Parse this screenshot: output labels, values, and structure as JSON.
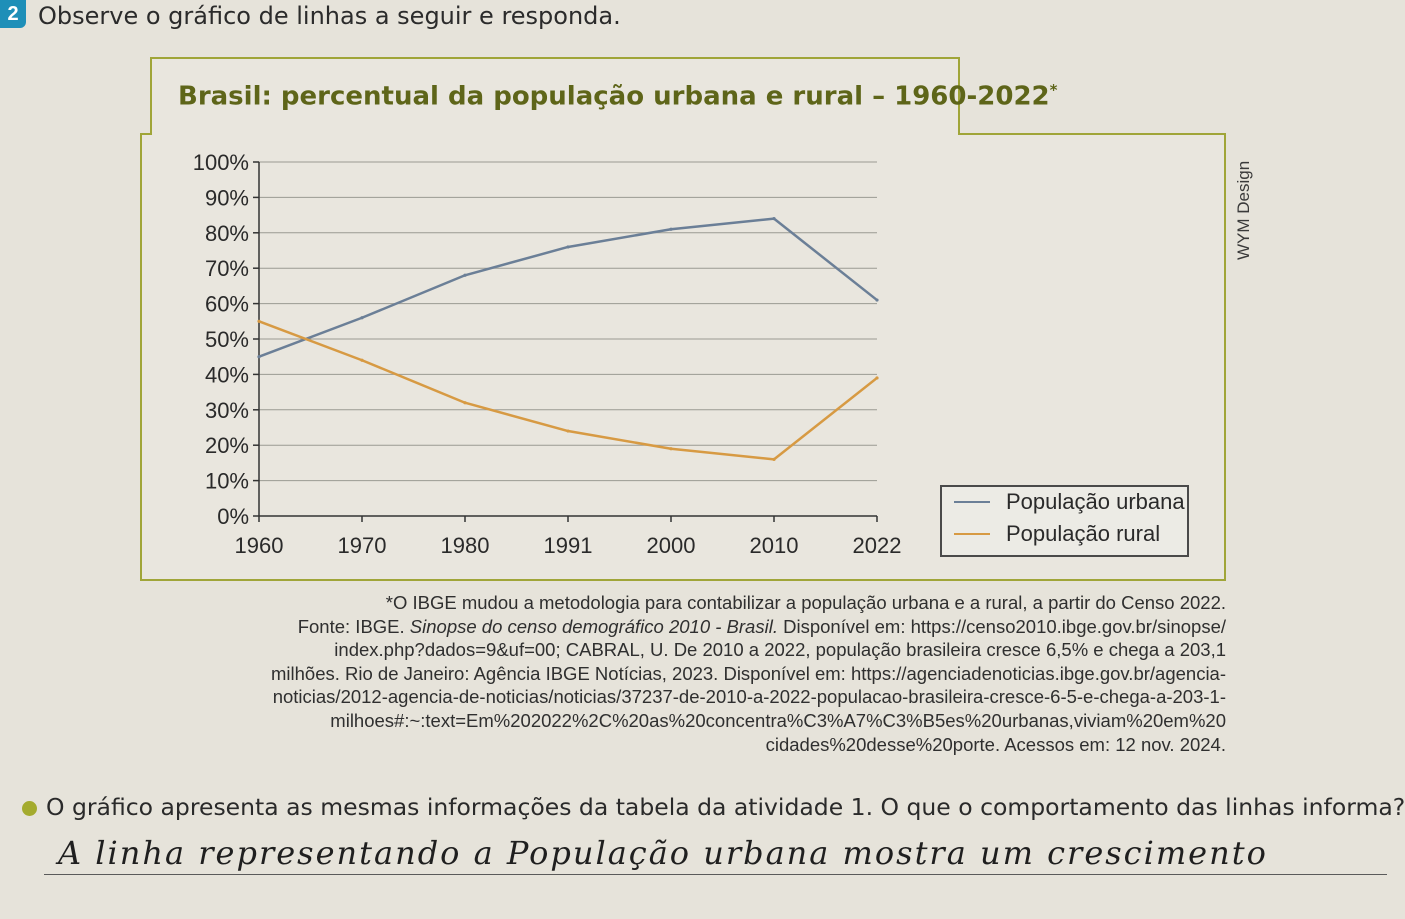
{
  "question_number": "2",
  "instruction": "Observe o gráfico de linhas a seguir e responda.",
  "credit": "WYM Design",
  "chart_data": {
    "type": "line",
    "title": "Brasil: percentual da população urbana e rural – 1960-2022",
    "title_mark": "*",
    "categories": [
      "1960",
      "1970",
      "1980",
      "1991",
      "2000",
      "2010",
      "2022"
    ],
    "series": [
      {
        "name": "População urbana",
        "color": "#6b7f97",
        "values": [
          45,
          56,
          68,
          76,
          81,
          84,
          61
        ]
      },
      {
        "name": "População rural",
        "color": "#d79a43",
        "values": [
          55,
          44,
          32,
          24,
          19,
          16,
          39
        ]
      }
    ],
    "ylim": [
      0,
      100
    ],
    "yticks": [
      "0%",
      "10%",
      "20%",
      "30%",
      "40%",
      "50%",
      "60%",
      "70%",
      "80%",
      "90%",
      "100%"
    ],
    "grid": true,
    "legend_position": "bottom-right"
  },
  "notes": {
    "footnote": "*O IBGE mudou a metodologia para contabilizar a população urbana e a rural, a partir do Censo 2022.",
    "source_prefix": "Fonte: IBGE. ",
    "source_title": "Sinopse do censo demográfico 2010 - Brasil.",
    "source_line1_rest": " Disponível em: https://censo2010.ibge.gov.br/sinopse/",
    "line2": "index.php?dados=9&uf=00; CABRAL, U. De 2010 a 2022, população brasileira cresce 6,5% e chega a 203,1",
    "line3": "milhões. Rio de Janeiro: Agência IBGE Notícias, 2023. Disponível em: https://agenciadenoticias.ibge.gov.br/agencia-",
    "line4": "noticias/2012-agencia-de-noticias/noticias/37237-de-2010-a-2022-populacao-brasileira-cresce-6-5-e-chega-a-203-1-",
    "line5": "milhoes#:~:text=Em%202022%2C%20as%20concentra%C3%A7%C3%B5es%20urbanas,viviam%20em%20",
    "line6": "cidades%20desse%20porte. Acessos em: 12 nov. 2024."
  },
  "question": "O gráfico apresenta as mesmas informações da tabela da atividade 1. O que o comportamento das linhas informa?",
  "answer": "A linha representando a População urbana mostra um crescimento"
}
